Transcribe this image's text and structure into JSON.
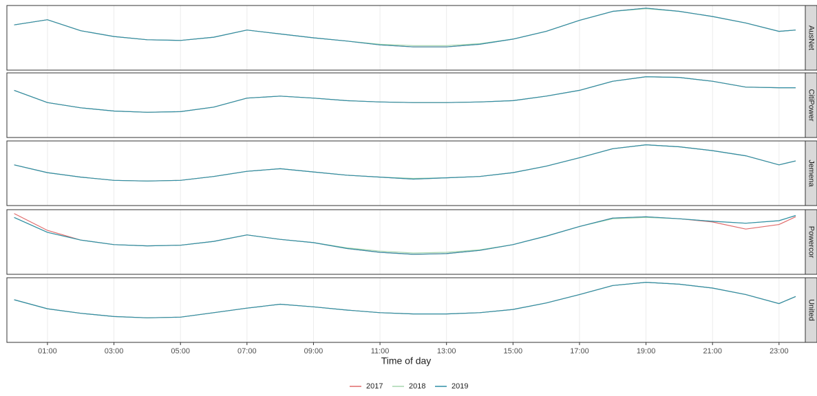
{
  "chart_data": {
    "type": "line",
    "xlabel": "Time of day",
    "x": [
      0,
      1,
      2,
      3,
      4,
      5,
      6,
      7,
      8,
      9,
      10,
      11,
      12,
      13,
      14,
      15,
      16,
      17,
      18,
      19,
      20,
      21,
      22,
      23,
      23.5
    ],
    "xlim": [
      -0.22,
      23.79
    ],
    "xticks": [
      {
        "value": 1,
        "label": "01:00"
      },
      {
        "value": 3,
        "label": "03:00"
      },
      {
        "value": 5,
        "label": "05:00"
      },
      {
        "value": 7,
        "label": "07:00"
      },
      {
        "value": 9,
        "label": "09:00"
      },
      {
        "value": 11,
        "label": "11:00"
      },
      {
        "value": 13,
        "label": "13:00"
      },
      {
        "value": 15,
        "label": "15:00"
      },
      {
        "value": 17,
        "label": "17:00"
      },
      {
        "value": 19,
        "label": "19:00"
      },
      {
        "value": 21,
        "label": "21:00"
      },
      {
        "value": 23,
        "label": "23:00"
      }
    ],
    "ylim": [
      0,
      100
    ],
    "grid": true,
    "series": [
      {
        "name": "2017",
        "color": "#e06a6a"
      },
      {
        "name": "2018",
        "color": "#a6d6ae"
      },
      {
        "name": "2019",
        "color": "#2f8ea6"
      }
    ],
    "facets": [
      {
        "name": "AusNet",
        "series": [
          {
            "values": [
              70,
              78,
              61,
              52,
              47,
              46,
              51,
              62,
              56,
              50,
              45,
              39,
              36,
              36,
              40,
              48,
              60,
              77,
              91,
              96,
              91,
              83,
              73,
              60,
              62
            ]
          },
          {
            "values": [
              70,
              78,
              61,
              52,
              47,
              46,
              51,
              62,
              56,
              50,
              45,
              40,
              38,
              38,
              41,
              48,
              60,
              77,
              91,
              95,
              91,
              83,
              73,
              60,
              62
            ]
          },
          {
            "values": [
              70,
              78,
              61,
              52,
              47,
              46,
              51,
              62,
              56,
              50,
              45,
              39,
              36,
              36,
              40,
              48,
              60,
              77,
              91,
              96,
              91,
              83,
              73,
              60,
              62
            ]
          }
        ]
      },
      {
        "name": "CitiPower",
        "series": [
          {
            "values": [
              73,
              54,
              46,
              41,
              39,
              40,
              47,
              61,
              64,
              61,
              57,
              55,
              54,
              54,
              55,
              57,
              64,
              73,
              87,
              94,
              93,
              87,
              78,
              77,
              77
            ]
          },
          {
            "values": [
              73,
              54,
              46,
              41,
              39,
              40,
              47,
              61,
              64,
              61,
              57,
              55,
              54,
              54,
              55,
              57,
              64,
              73,
              87,
              94,
              93,
              87,
              78,
              77,
              77
            ]
          },
          {
            "values": [
              73,
              54,
              46,
              41,
              39,
              40,
              47,
              61,
              64,
              61,
              57,
              55,
              54,
              54,
              55,
              57,
              64,
              73,
              87,
              94,
              93,
              87,
              78,
              77,
              77
            ]
          }
        ]
      },
      {
        "name": "Jemena",
        "series": [
          {
            "values": [
              63,
              51,
              44,
              39,
              38,
              39,
              45,
              53,
              57,
              52,
              47,
              44,
              41,
              43,
              45,
              51,
              61,
              74,
              88,
              94,
              91,
              85,
              77,
              63,
              69
            ]
          },
          {
            "values": [
              63,
              51,
              44,
              39,
              38,
              39,
              45,
              53,
              57,
              52,
              47,
              44,
              42,
              43,
              45,
              51,
              61,
              74,
              88,
              94,
              91,
              85,
              77,
              63,
              69
            ]
          },
          {
            "values": [
              63,
              51,
              44,
              39,
              38,
              39,
              45,
              53,
              57,
              52,
              47,
              44,
              41,
              43,
              45,
              51,
              61,
              74,
              88,
              94,
              91,
              85,
              77,
              63,
              69
            ]
          }
        ]
      },
      {
        "name": "Powercor",
        "series": [
          {
            "values": [
              94,
              68,
              53,
              46,
              44,
              45,
              51,
              61,
              54,
              49,
              40,
              34,
              31,
              32,
              37,
              46,
              59,
              74,
              87,
              89,
              86,
              81,
              70,
              77,
              89
            ]
          },
          {
            "values": [
              88,
              65,
              53,
              46,
              44,
              45,
              51,
              61,
              54,
              49,
              41,
              36,
              33,
              34,
              38,
              46,
              59,
              74,
              86,
              88,
              86,
              82,
              79,
              83,
              91
            ]
          },
          {
            "values": [
              88,
              65,
              53,
              46,
              44,
              45,
              51,
              61,
              54,
              49,
              40,
              34,
              31,
              32,
              37,
              46,
              59,
              74,
              87,
              89,
              86,
              82,
              79,
              83,
              91
            ]
          }
        ]
      },
      {
        "name": "United",
        "series": [
          {
            "values": [
              66,
              52,
              45,
              40,
              38,
              39,
              46,
              53,
              59,
              55,
              50,
              46,
              44,
              44,
              46,
              51,
              61,
              74,
              88,
              93,
              90,
              84,
              74,
              60,
              71
            ]
          },
          {
            "values": [
              66,
              52,
              45,
              40,
              38,
              39,
              46,
              53,
              59,
              55,
              50,
              46,
              44,
              44,
              46,
              51,
              61,
              74,
              88,
              93,
              90,
              84,
              74,
              60,
              71
            ]
          },
          {
            "values": [
              66,
              52,
              45,
              40,
              38,
              39,
              46,
              53,
              59,
              55,
              50,
              46,
              44,
              44,
              46,
              51,
              61,
              74,
              88,
              93,
              90,
              84,
              74,
              60,
              71
            ]
          }
        ]
      }
    ]
  }
}
